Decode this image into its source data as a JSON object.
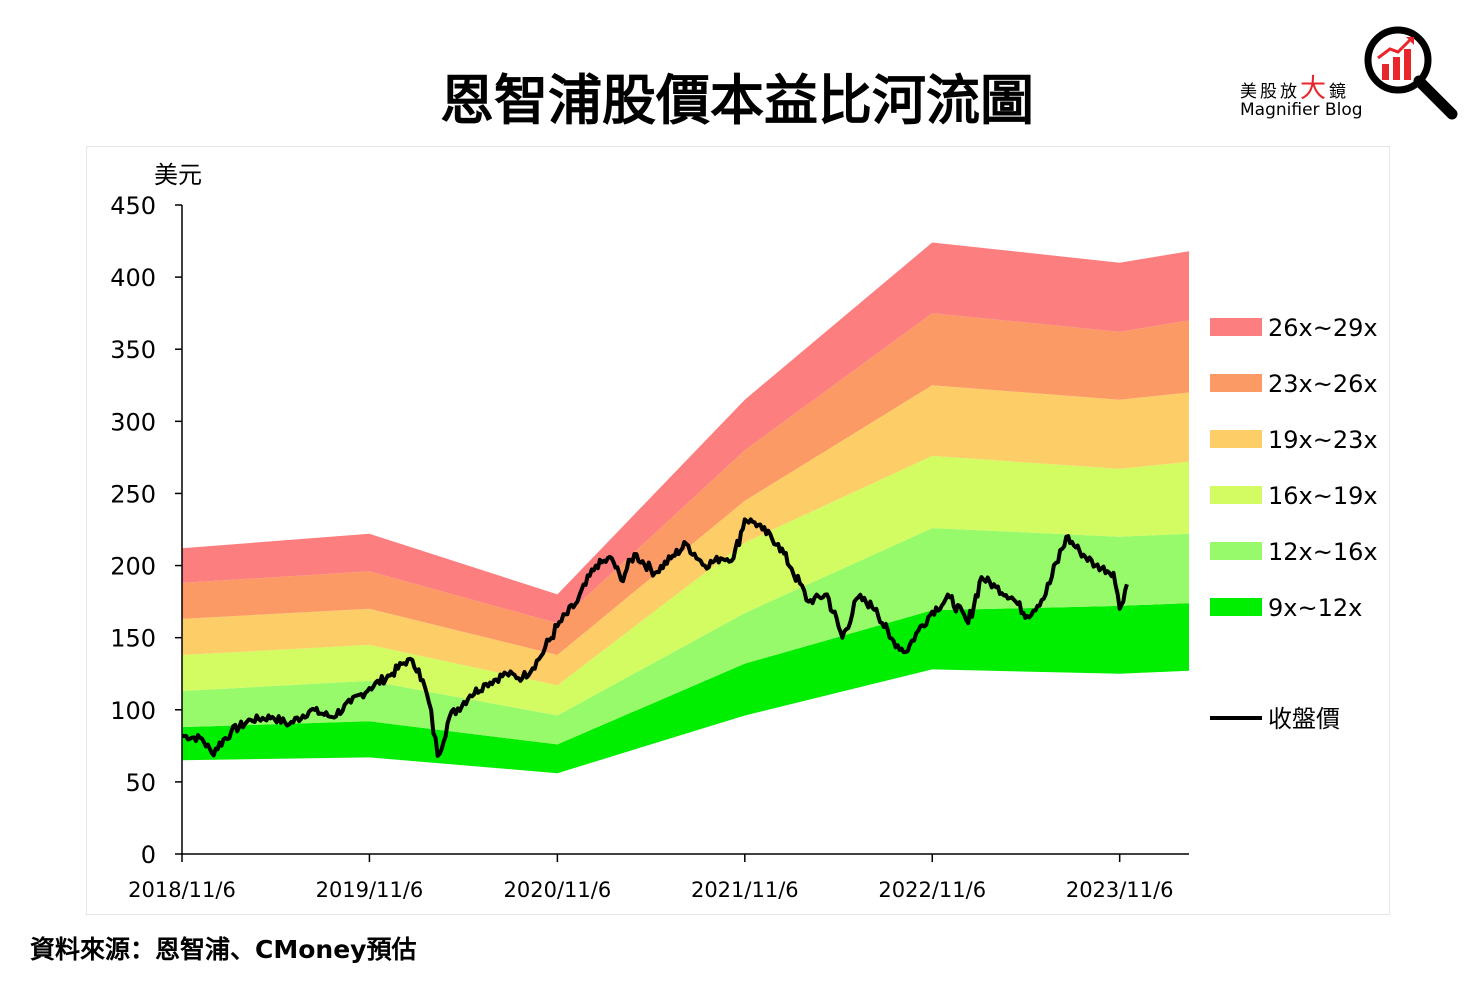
{
  "title": "恩智浦股價本益比河流圖",
  "logo": {
    "cn_1": "美股放",
    "cn_big": "大",
    "cn_2": "鏡",
    "en": "Magnifier Blog"
  },
  "source": "資料來源：恩智浦、CMoney預估",
  "chart_data": {
    "type": "area",
    "title": "恩智浦股價本益比河流圖",
    "ylabel": "美元",
    "ylim": [
      0,
      450
    ],
    "yticks": [
      0,
      50,
      100,
      150,
      200,
      250,
      300,
      350,
      400,
      450
    ],
    "xlim": [
      "2018-11-06",
      "2024-03-20"
    ],
    "xtick_labels": [
      "2018/11/6",
      "2019/11/6",
      "2020/11/6",
      "2021/11/6",
      "2022/11/6",
      "2023/11/6"
    ],
    "xtick_dates": [
      "2018-11-06",
      "2019-11-06",
      "2020-11-06",
      "2021-11-06",
      "2022-11-06",
      "2023-11-06"
    ],
    "grid": false,
    "legend_position": "right",
    "band_dates": [
      "2018-11-06",
      "2019-11-06",
      "2020-11-06",
      "2021-11-06",
      "2022-11-06",
      "2023-11-06",
      "2024-03-20"
    ],
    "bands": [
      {
        "name": "9x~12x",
        "color": "#00ee00",
        "lower": [
          65,
          67,
          56,
          96,
          128,
          125,
          127
        ],
        "upper": [
          88,
          92,
          76,
          132,
          169,
          172,
          174
        ]
      },
      {
        "name": "12x~16x",
        "color": "#96fa6a",
        "lower": [
          88,
          92,
          76,
          132,
          169,
          172,
          174
        ],
        "upper": [
          113,
          120,
          96,
          167,
          226,
          220,
          222
        ]
      },
      {
        "name": "16x~19x",
        "color": "#d2fc62",
        "lower": [
          113,
          120,
          96,
          167,
          226,
          220,
          222
        ],
        "upper": [
          138,
          145,
          117,
          216,
          276,
          267,
          272
        ]
      },
      {
        "name": "19x~23x",
        "color": "#fdcd68",
        "lower": [
          138,
          145,
          117,
          216,
          276,
          267,
          272
        ],
        "upper": [
          163,
          170,
          138,
          245,
          325,
          315,
          320
        ]
      },
      {
        "name": "23x~26x",
        "color": "#fc9a66",
        "lower": [
          163,
          170,
          138,
          245,
          325,
          315,
          320
        ],
        "upper": [
          188,
          196,
          160,
          280,
          375,
          362,
          370
        ]
      },
      {
        "name": "26x~29x",
        "color": "#fd7e7e",
        "lower": [
          188,
          196,
          160,
          280,
          375,
          362,
          370
        ],
        "upper": [
          212,
          222,
          180,
          315,
          424,
          410,
          418
        ]
      }
    ],
    "line": {
      "name": "收盤價",
      "color": "#000000",
      "x": [
        "2018-11-06",
        "2018-12-15",
        "2019-01-03",
        "2019-02-10",
        "2019-03-20",
        "2019-05-01",
        "2019-06-03",
        "2019-07-15",
        "2019-08-25",
        "2019-10-01",
        "2019-11-06",
        "2019-12-20",
        "2020-01-20",
        "2020-02-10",
        "2020-03-01",
        "2020-03-18",
        "2020-04-10",
        "2020-05-20",
        "2020-06-20",
        "2020-07-30",
        "2020-08-30",
        "2020-10-01",
        "2020-11-06",
        "2020-12-15",
        "2021-01-20",
        "2021-02-20",
        "2021-03-10",
        "2021-04-05",
        "2021-05-15",
        "2021-06-15",
        "2021-07-15",
        "2021-08-20",
        "2021-09-20",
        "2021-10-15",
        "2021-11-06",
        "2021-11-25",
        "2021-12-10",
        "2022-01-10",
        "2022-02-05",
        "2022-03-10",
        "2022-04-15",
        "2022-05-15",
        "2022-06-15",
        "2022-07-20",
        "2022-08-15",
        "2022-09-15",
        "2022-10-10",
        "2022-11-06",
        "2022-12-10",
        "2023-01-15",
        "2023-02-10",
        "2023-03-10",
        "2023-04-10",
        "2023-05-10",
        "2023-06-15",
        "2023-07-25",
        "2023-08-20",
        "2023-09-20",
        "2023-10-25",
        "2023-11-06",
        "2023-11-20"
      ],
      "y": [
        82,
        80,
        70,
        85,
        93,
        95,
        90,
        100,
        95,
        105,
        115,
        125,
        135,
        128,
        105,
        68,
        95,
        110,
        118,
        125,
        122,
        135,
        158,
        175,
        200,
        205,
        190,
        208,
        195,
        205,
        215,
        200,
        205,
        205,
        232,
        230,
        225,
        215,
        198,
        175,
        180,
        150,
        178,
        170,
        150,
        140,
        155,
        168,
        178,
        160,
        192,
        185,
        178,
        165,
        180,
        220,
        210,
        200,
        195,
        170,
        187
      ]
    }
  }
}
